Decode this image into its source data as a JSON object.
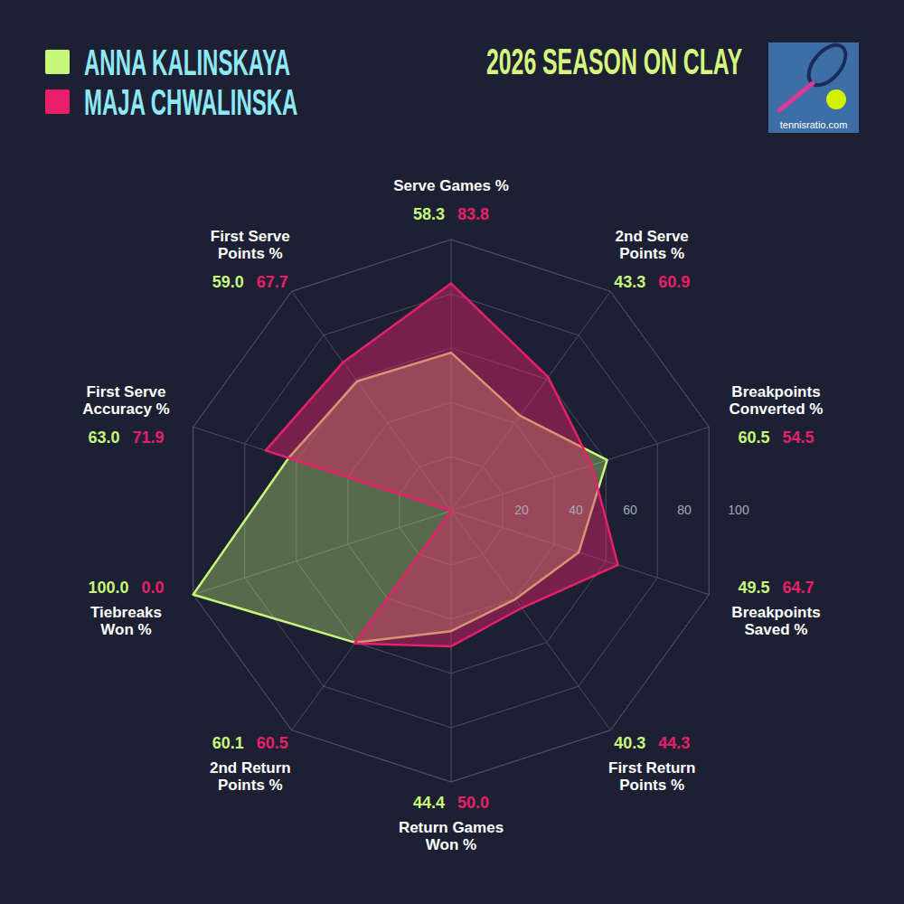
{
  "chart_data": {
    "type": "radar",
    "title": "2026 SEASON ON CLAY",
    "annotations": [
      "tennisratio.com"
    ],
    "categories": [
      "Serve Games %",
      "2nd Serve Points %",
      "Breakpoints Converted %",
      "Breakpoints Saved %",
      "First Return Points %",
      "Return Games Won %",
      "2nd Return Points %",
      "Tiebreaks Won %",
      "First Serve Accuracy %",
      "First Serve Points %"
    ],
    "series": [
      {
        "name": "ANNA KALINSKAYA",
        "color": "#c6f77a",
        "values": [
          58.3,
          43.3,
          60.5,
          49.5,
          40.3,
          44.4,
          60.1,
          100.0,
          63.0,
          59.0
        ],
        "value_labels": [
          "58.3",
          "43.3",
          "60.5",
          "49.5",
          "40.3",
          "44.4",
          "60.1",
          "100.0",
          "63.0",
          "59.0"
        ]
      },
      {
        "name": "MAJA CHWALINSKA",
        "color": "#e8206b",
        "values": [
          83.8,
          60.9,
          54.5,
          64.7,
          44.3,
          50.0,
          60.5,
          0.0,
          71.9,
          67.7
        ],
        "value_labels": [
          "83.8",
          "60.9",
          "54.5",
          "64.7",
          "44.3",
          "50.0",
          "60.5",
          "0.0",
          "71.9",
          "67.7"
        ]
      }
    ],
    "ylim": [
      0,
      100
    ],
    "yticks": [
      20,
      40,
      60,
      80,
      100
    ],
    "grid": true,
    "legend": "upper left",
    "data_labels": true
  }
}
